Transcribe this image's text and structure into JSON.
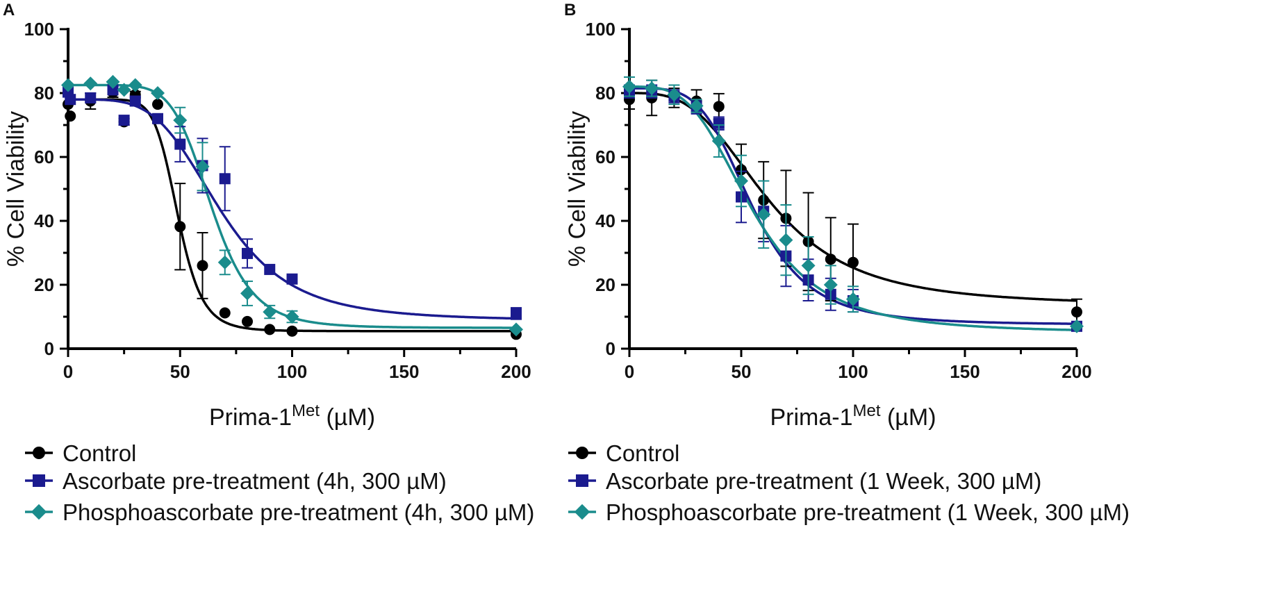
{
  "chart_data": [
    {
      "type": "scatter",
      "panel": "A",
      "xlabel": "Prima-1",
      "xlabel_sup": "Met",
      "xlabel_unit": " (µM)",
      "ylabel": "% Cell Viability",
      "xlim": [
        0,
        200
      ],
      "ylim": [
        0,
        100
      ],
      "xticks": [
        "0",
        "50",
        "100",
        "150",
        "200"
      ],
      "yticks": [
        "0",
        "20",
        "40",
        "60",
        "80",
        "100"
      ],
      "series": [
        {
          "name": "Control",
          "color": "#000000",
          "marker": "circle",
          "points": [
            {
              "x": 0,
              "y": 76.5,
              "err": 0
            },
            {
              "x": 1,
              "y": 72.8,
              "err": 0
            },
            {
              "x": 10,
              "y": 77.5,
              "err": 2.5
            },
            {
              "x": 20,
              "y": 80.2,
              "err": 1.5
            },
            {
              "x": 25,
              "y": 71.0,
              "err": 1
            },
            {
              "x": 30,
              "y": 79.5,
              "err": 1
            },
            {
              "x": 40,
              "y": 76.5,
              "err": 0
            },
            {
              "x": 50,
              "y": 38.2,
              "err": 13.5
            },
            {
              "x": 60,
              "y": 26.0,
              "err": 10.3
            },
            {
              "x": 70,
              "y": 11.2,
              "err": 0
            },
            {
              "x": 80,
              "y": 8.5,
              "err": 0
            },
            {
              "x": 90,
              "y": 6.0,
              "err": 0
            },
            {
              "x": 100,
              "y": 5.5,
              "err": 0
            },
            {
              "x": 200,
              "y": 4.5,
              "err": 0
            }
          ],
          "fit": {
            "top": 78.0,
            "bottom": 5.5,
            "ic50": 49,
            "hill": 9
          }
        },
        {
          "name": "Ascorbate pre-treatment (4h, 300 µM)",
          "color": "#1b1b8f",
          "marker": "square",
          "points": [
            {
              "x": 0,
              "y": 80.3,
              "err": 0
            },
            {
              "x": 1,
              "y": 78.0,
              "err": 0
            },
            {
              "x": 10,
              "y": 78.5,
              "err": 1.5
            },
            {
              "x": 20,
              "y": 81.0,
              "err": 1
            },
            {
              "x": 25,
              "y": 71.5,
              "err": 0
            },
            {
              "x": 30,
              "y": 77.5,
              "err": 1.5
            },
            {
              "x": 40,
              "y": 72.0,
              "err": 0
            },
            {
              "x": 50,
              "y": 64.0,
              "err": 5.5
            },
            {
              "x": 60,
              "y": 57.3,
              "err": 8.5
            },
            {
              "x": 70,
              "y": 53.2,
              "err": 10
            },
            {
              "x": 80,
              "y": 29.8,
              "err": 4.5
            },
            {
              "x": 90,
              "y": 24.8,
              "err": 0
            },
            {
              "x": 100,
              "y": 21.8,
              "err": 0
            },
            {
              "x": 200,
              "y": 11.0,
              "err": 1.8
            }
          ],
          "fit": {
            "top": 78.0,
            "bottom": 8.8,
            "ic50": 68,
            "hill": 4.3
          }
        },
        {
          "name": "Phosphoascorbate pre-treatment (4h, 300 µM)",
          "color": "#1a8c8c",
          "marker": "diamond",
          "points": [
            {
              "x": 0,
              "y": 82.5,
              "err": 0
            },
            {
              "x": 10,
              "y": 83.0,
              "err": 0
            },
            {
              "x": 20,
              "y": 83.5,
              "err": 0
            },
            {
              "x": 25,
              "y": 81.0,
              "err": 0
            },
            {
              "x": 30,
              "y": 82.5,
              "err": 0
            },
            {
              "x": 40,
              "y": 80.0,
              "err": 0
            },
            {
              "x": 50,
              "y": 71.5,
              "err": 4
            },
            {
              "x": 60,
              "y": 57.0,
              "err": 7.5
            },
            {
              "x": 70,
              "y": 27.0,
              "err": 3.8
            },
            {
              "x": 80,
              "y": 17.3,
              "err": 3.8
            },
            {
              "x": 90,
              "y": 11.5,
              "err": 2
            },
            {
              "x": 100,
              "y": 10.0,
              "err": 1.8
            },
            {
              "x": 200,
              "y": 6.0,
              "err": 0
            }
          ],
          "fit": {
            "top": 82.5,
            "bottom": 6.5,
            "ic50": 64,
            "hill": 7
          }
        }
      ],
      "legend": [
        {
          "label": "Control",
          "color": "#000000",
          "marker": "circle"
        },
        {
          "label": "Ascorbate pre-treatment (4h, 300 µM)",
          "color": "#1b1b8f",
          "marker": "square"
        },
        {
          "label": "Phosphoascorbate pre-treatment (4h, 300 µM)",
          "color": "#1a8c8c",
          "marker": "diamond"
        }
      ]
    },
    {
      "type": "scatter",
      "panel": "B",
      "xlabel": "Prima-1",
      "xlabel_sup": "Met",
      "xlabel_unit": " (µM)",
      "ylabel": "% Cell Viability",
      "xlim": [
        0,
        200
      ],
      "ylim": [
        0,
        100
      ],
      "xticks": [
        "0",
        "50",
        "100",
        "150",
        "200"
      ],
      "yticks": [
        "0",
        "20",
        "40",
        "60",
        "80",
        "100"
      ],
      "series": [
        {
          "name": "Control",
          "color": "#000000",
          "marker": "circle",
          "points": [
            {
              "x": 0,
              "y": 78.0,
              "err": 3
            },
            {
              "x": 10,
              "y": 78.5,
              "err": 5.5
            },
            {
              "x": 20,
              "y": 78.5,
              "err": 3
            },
            {
              "x": 30,
              "y": 77.5,
              "err": 3.5
            },
            {
              "x": 40,
              "y": 75.8,
              "err": 4
            },
            {
              "x": 50,
              "y": 56.0,
              "err": 8
            },
            {
              "x": 60,
              "y": 46.5,
              "err": 12
            },
            {
              "x": 70,
              "y": 40.8,
              "err": 15
            },
            {
              "x": 80,
              "y": 33.5,
              "err": 15.3
            },
            {
              "x": 90,
              "y": 28.0,
              "err": 13
            },
            {
              "x": 100,
              "y": 27.0,
              "err": 12
            },
            {
              "x": 200,
              "y": 11.5,
              "err": 4
            }
          ],
          "fit": {
            "top": 80.0,
            "bottom": 13.5,
            "ic50": 62,
            "hill": 3.2
          }
        },
        {
          "name": "Ascorbate pre-treatment (1 Week, 300 µM)",
          "color": "#1b1b8f",
          "marker": "square",
          "points": [
            {
              "x": 0,
              "y": 80.5,
              "err": 2
            },
            {
              "x": 10,
              "y": 80.5,
              "err": 2
            },
            {
              "x": 20,
              "y": 79.0,
              "err": 2
            },
            {
              "x": 30,
              "y": 75.5,
              "err": 2
            },
            {
              "x": 40,
              "y": 70.5,
              "err": 2
            },
            {
              "x": 50,
              "y": 47.5,
              "err": 8
            },
            {
              "x": 60,
              "y": 43.0,
              "err": 9.5
            },
            {
              "x": 70,
              "y": 29.0,
              "err": 9.5
            },
            {
              "x": 80,
              "y": 21.5,
              "err": 6.5
            },
            {
              "x": 90,
              "y": 17.0,
              "err": 5
            },
            {
              "x": 100,
              "y": 15.0,
              "err": 3.5
            },
            {
              "x": 200,
              "y": 7.0,
              "err": 0
            }
          ],
          "fit": {
            "top": 81.5,
            "bottom": 7.5,
            "ic50": 55,
            "hill": 4.3
          }
        },
        {
          "name": "Phosphoascorbate pre-treatment (1 Week, 300 µM)",
          "color": "#1a8c8c",
          "marker": "diamond",
          "points": [
            {
              "x": 0,
              "y": 82.0,
              "err": 3
            },
            {
              "x": 10,
              "y": 81.5,
              "err": 2.5
            },
            {
              "x": 20,
              "y": 79.5,
              "err": 3
            },
            {
              "x": 30,
              "y": 76.0,
              "err": 2
            },
            {
              "x": 40,
              "y": 65.0,
              "err": 5
            },
            {
              "x": 50,
              "y": 52.5,
              "err": 8
            },
            {
              "x": 60,
              "y": 42.0,
              "err": 10.5
            },
            {
              "x": 70,
              "y": 34.0,
              "err": 11
            },
            {
              "x": 80,
              "y": 26.0,
              "err": 9
            },
            {
              "x": 90,
              "y": 20.0,
              "err": 6
            },
            {
              "x": 100,
              "y": 15.5,
              "err": 4
            },
            {
              "x": 200,
              "y": 7.0,
              "err": 0
            }
          ],
          "fit": {
            "top": 82.0,
            "bottom": 5.0,
            "ic50": 55,
            "hill": 3.5
          }
        }
      ],
      "legend": [
        {
          "label": "Control",
          "color": "#000000",
          "marker": "circle"
        },
        {
          "label": "Ascorbate pre-treatment (1 Week, 300 µM)",
          "color": "#1b1b8f",
          "marker": "square"
        },
        {
          "label": "Phosphoascorbate pre-treatment (1 Week, 300 µM)",
          "color": "#1a8c8c",
          "marker": "diamond"
        }
      ]
    }
  ]
}
